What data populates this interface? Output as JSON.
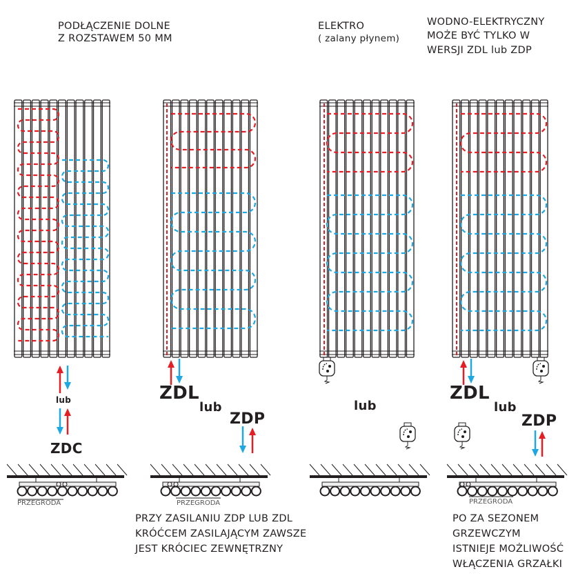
{
  "headers": {
    "col1": [
      "PODŁĄCZENIE DOLNE",
      "Z ROZSTAWEM 50 MM"
    ],
    "col3": [
      "ELEKTRO",
      "( zalany płynem)"
    ],
    "col4": [
      "WODNO-ELEKTRYCZNY",
      "MOŻE BYĆ TYLKO W",
      "WERSJI ZDL lub ZDP"
    ]
  },
  "labels": {
    "lub": "lub",
    "zdc": "ZDC",
    "zdl": "ZDL",
    "zdp": "ZDP",
    "przegroda": "PRZEGRODA"
  },
  "notes": {
    "left": [
      "PRZY ZASILANIU ZDP LUB ZDL",
      "KRÓĆCEM ZASILAJĄCYM ZAWSZE",
      "JEST KRÓCIEC ZEWNĘTRZNY"
    ],
    "right": [
      "PO ZA SEZONEM",
      "GRZEWCZYM",
      "ISTNIEJE MOŻLIWOŚĆ",
      "WŁĄCZENIA GRZAŁKI"
    ]
  },
  "colors": {
    "hot": "#e31e24",
    "cold": "#1ea7e1",
    "line": "#231f20"
  }
}
